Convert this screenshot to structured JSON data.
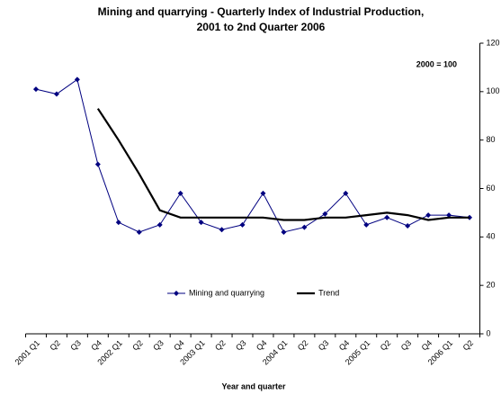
{
  "chart_data": {
    "type": "line",
    "title": [
      "Mining and quarrying - Quarterly Index of Industrial Production,",
      "2001 to 2nd Quarter 2006"
    ],
    "annotation": "2000 = 100",
    "x_label": "Year and quarter",
    "categories": [
      "2001 Q1",
      "Q2",
      "Q3",
      "Q4",
      "2002 Q1",
      "Q2",
      "Q3",
      "Q4",
      "2003 Q1",
      "Q2",
      "Q3",
      "Q4",
      "2004 Q1",
      "Q2",
      "Q3",
      "Q4",
      "2005 Q1",
      "Q2",
      "Q3",
      "Q4",
      "2006 Q1",
      "Q2"
    ],
    "series": [
      {
        "name": "Mining and quarrying",
        "color": "#000080",
        "marker": "diamond",
        "values": [
          101,
          99,
          105,
          70,
          46,
          42,
          45,
          58,
          46,
          43,
          45,
          58,
          42,
          44,
          49.5,
          58,
          45,
          48,
          44.6,
          49,
          49,
          48
        ]
      },
      {
        "name": "Trend",
        "color": "#000000",
        "marker": "none",
        "values": [
          null,
          null,
          null,
          93,
          80,
          66,
          51,
          48,
          48,
          48,
          48,
          48,
          47,
          47,
          48,
          48,
          49,
          50,
          49,
          47,
          48,
          48
        ]
      }
    ],
    "ylim": [
      0,
      120
    ],
    "yticks": [
      0,
      20,
      40,
      60,
      80,
      100,
      120
    ],
    "y_axis_side": "right",
    "grid": false
  }
}
